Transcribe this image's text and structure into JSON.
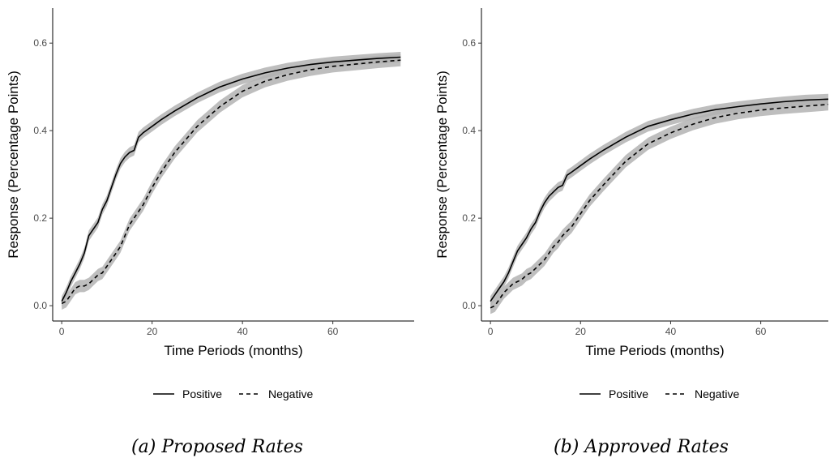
{
  "chart_data": [
    {
      "type": "line",
      "caption": "(a) Proposed Rates",
      "xlabel": "Time Periods (months)",
      "ylabel": "Response (Percentage Points)",
      "xlim": [
        -2,
        78
      ],
      "ylim": [
        -0.035,
        0.68
      ],
      "xticks": [
        0,
        20,
        40,
        60
      ],
      "yticks": [
        0.0,
        0.2,
        0.4,
        0.6
      ],
      "xtick_labels": [
        "0",
        "20",
        "40",
        "60"
      ],
      "ytick_labels": [
        "0.0",
        "0.2",
        "0.4",
        "0.6"
      ],
      "grid": false,
      "legend_position": "bottom",
      "series": [
        {
          "name": "Positive",
          "linestyle": "solid",
          "x": [
            0,
            1,
            2,
            3,
            4,
            5,
            6,
            7,
            8,
            9,
            10,
            11,
            12,
            13,
            14,
            15,
            16,
            17,
            18,
            20,
            22,
            25,
            30,
            35,
            40,
            45,
            50,
            55,
            60,
            65,
            70,
            75
          ],
          "y": [
            0.01,
            0.03,
            0.055,
            0.075,
            0.095,
            0.12,
            0.16,
            0.175,
            0.19,
            0.22,
            0.24,
            0.27,
            0.3,
            0.325,
            0.34,
            0.35,
            0.355,
            0.385,
            0.395,
            0.41,
            0.425,
            0.445,
            0.475,
            0.5,
            0.518,
            0.532,
            0.543,
            0.551,
            0.557,
            0.561,
            0.565,
            0.568
          ],
          "band_halfwidth": 0.012
        },
        {
          "name": "Negative",
          "linestyle": "dashed",
          "x": [
            0,
            1,
            2,
            3,
            4,
            5,
            6,
            7,
            8,
            9,
            10,
            11,
            12,
            13,
            14,
            15,
            16,
            17,
            18,
            20,
            22,
            25,
            30,
            35,
            40,
            45,
            50,
            55,
            60,
            65,
            70,
            75
          ],
          "y": [
            0.005,
            0.01,
            0.025,
            0.04,
            0.045,
            0.045,
            0.05,
            0.06,
            0.07,
            0.075,
            0.09,
            0.105,
            0.12,
            0.135,
            0.16,
            0.185,
            0.2,
            0.215,
            0.23,
            0.27,
            0.305,
            0.35,
            0.41,
            0.455,
            0.49,
            0.513,
            0.528,
            0.539,
            0.547,
            0.552,
            0.557,
            0.561
          ],
          "band_halfwidth": 0.014
        }
      ]
    },
    {
      "type": "line",
      "caption": "(b) Approved Rates",
      "xlabel": "Time Periods (months)",
      "ylabel": "Response (Percentage Points)",
      "xlim": [
        -2,
        75
      ],
      "ylim": [
        -0.035,
        0.68
      ],
      "xticks": [
        0,
        20,
        40,
        60
      ],
      "yticks": [
        0.0,
        0.2,
        0.4,
        0.6
      ],
      "xtick_labels": [
        "0",
        "20",
        "40",
        "60"
      ],
      "ytick_labels": [
        "0.0",
        "0.2",
        "0.4",
        "0.6"
      ],
      "grid": false,
      "legend_position": "bottom",
      "series": [
        {
          "name": "Positive",
          "linestyle": "solid",
          "x": [
            0,
            1,
            2,
            3,
            4,
            5,
            6,
            7,
            8,
            9,
            10,
            11,
            12,
            13,
            14,
            15,
            16,
            17,
            18,
            20,
            22,
            25,
            30,
            35,
            40,
            45,
            50,
            55,
            60,
            65,
            70,
            75
          ],
          "y": [
            0.01,
            0.025,
            0.04,
            0.055,
            0.075,
            0.1,
            0.125,
            0.14,
            0.155,
            0.175,
            0.19,
            0.215,
            0.235,
            0.25,
            0.26,
            0.27,
            0.275,
            0.298,
            0.305,
            0.32,
            0.335,
            0.355,
            0.385,
            0.41,
            0.425,
            0.438,
            0.448,
            0.455,
            0.461,
            0.466,
            0.47,
            0.472
          ],
          "band_halfwidth": 0.012
        },
        {
          "name": "Negative",
          "linestyle": "dashed",
          "x": [
            0,
            1,
            2,
            3,
            4,
            5,
            6,
            7,
            8,
            9,
            10,
            11,
            12,
            13,
            14,
            15,
            16,
            17,
            18,
            20,
            22,
            25,
            30,
            35,
            40,
            45,
            50,
            55,
            60,
            65,
            70,
            75
          ],
          "y": [
            -0.005,
            0.0,
            0.015,
            0.03,
            0.04,
            0.05,
            0.055,
            0.06,
            0.07,
            0.075,
            0.085,
            0.095,
            0.105,
            0.12,
            0.135,
            0.145,
            0.16,
            0.17,
            0.18,
            0.21,
            0.24,
            0.275,
            0.33,
            0.37,
            0.395,
            0.415,
            0.43,
            0.44,
            0.447,
            0.452,
            0.456,
            0.46
          ],
          "band_halfwidth": 0.014
        }
      ]
    }
  ]
}
